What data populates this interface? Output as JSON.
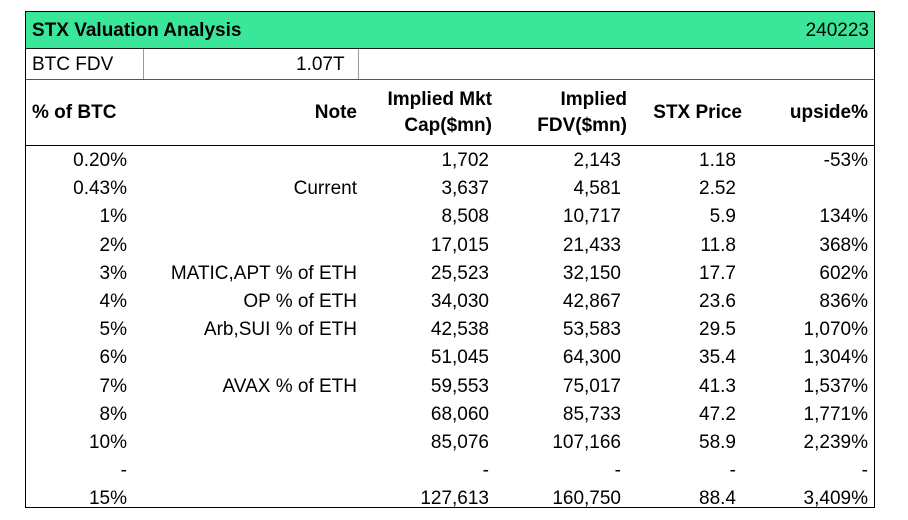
{
  "title": "STX Valuation Analysis",
  "date": "240223",
  "btc_fdv": {
    "label": "BTC FDV",
    "value": "1.07T"
  },
  "headers": [
    {
      "l1": "% of BTC",
      "l2": ""
    },
    {
      "l1": "Note",
      "l2": ""
    },
    {
      "l1": "Implied Mkt",
      "l2": "Cap($mn)"
    },
    {
      "l1": "Implied",
      "l2": "FDV($mn)"
    },
    {
      "l1": "STX Price",
      "l2": ""
    },
    {
      "l1": "upside%",
      "l2": ""
    }
  ],
  "rows": [
    {
      "pct": "0.20%",
      "note": "",
      "mktcap": "1,702",
      "fdv": "2,143",
      "price": "1.18",
      "upside": "-53%"
    },
    {
      "pct": "0.43%",
      "note": "Current",
      "mktcap": "3,637",
      "fdv": "4,581",
      "price": "2.52",
      "upside": ""
    },
    {
      "pct": "1%",
      "note": "",
      "mktcap": "8,508",
      "fdv": "10,717",
      "price": "5.9",
      "upside": "134%"
    },
    {
      "pct": "2%",
      "note": "",
      "mktcap": "17,015",
      "fdv": "21,433",
      "price": "11.8",
      "upside": "368%"
    },
    {
      "pct": "3%",
      "note": "MATIC,APT % of ETH",
      "mktcap": "25,523",
      "fdv": "32,150",
      "price": "17.7",
      "upside": "602%"
    },
    {
      "pct": "4%",
      "note": "OP % of ETH",
      "mktcap": "34,030",
      "fdv": "42,867",
      "price": "23.6",
      "upside": "836%"
    },
    {
      "pct": "5%",
      "note": "Arb,SUI % of ETH",
      "mktcap": "42,538",
      "fdv": "53,583",
      "price": "29.5",
      "upside": "1,070%"
    },
    {
      "pct": "6%",
      "note": "",
      "mktcap": "51,045",
      "fdv": "64,300",
      "price": "35.4",
      "upside": "1,304%"
    },
    {
      "pct": "7%",
      "note": "AVAX % of  ETH",
      "mktcap": "59,553",
      "fdv": "75,017",
      "price": "41.3",
      "upside": "1,537%"
    },
    {
      "pct": "8%",
      "note": "",
      "mktcap": "68,060",
      "fdv": "85,733",
      "price": "47.2",
      "upside": "1,771%"
    },
    {
      "pct": "10%",
      "note": "",
      "mktcap": "85,076",
      "fdv": "107,166",
      "price": "58.9",
      "upside": "2,239%"
    },
    {
      "pct": "-",
      "note": "",
      "mktcap": "-",
      "fdv": "-",
      "price": "-",
      "upside": "-"
    },
    {
      "pct": "15%",
      "note": "",
      "mktcap": "127,613",
      "fdv": "160,750",
      "price": "88.4",
      "upside": "3,409%"
    }
  ]
}
